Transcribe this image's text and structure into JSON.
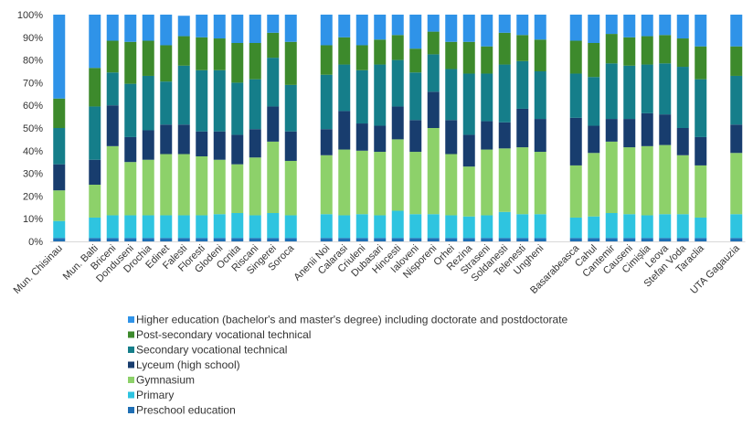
{
  "chart_data": {
    "type": "bar",
    "stacked": true,
    "title": "",
    "xlabel": "",
    "ylabel": "",
    "ylim": [
      0,
      100
    ],
    "y_ticks": [
      "0%",
      "10%",
      "20%",
      "30%",
      "40%",
      "50%",
      "60%",
      "70%",
      "80%",
      "90%",
      "100%"
    ],
    "grid": false,
    "legend_position": "bottom-left",
    "categories": [
      "Mun. Chisinau",
      "",
      "Mun. Balti",
      "Briceni",
      "Donduseni",
      "Drochia",
      "Edinet",
      "Falesti",
      "Floresti",
      "Glodeni",
      "Ocnita",
      "Riscani",
      "Singerei",
      "Soroca",
      "",
      "Anenii Noi",
      "Calarasi",
      "Criuleni",
      "Dubasari",
      "Hincesti",
      "Ialoveni",
      "Nisporeni",
      "Orhei",
      "Rezina",
      "Straseni",
      "Soldanesti",
      "Telenesti",
      "Ungheni",
      "",
      "Basarabeasca",
      "Cahul",
      "Cantemir",
      "Causeni",
      "Cimișlia",
      "Leova",
      "Stefan Voda",
      "Taraclia",
      "",
      "UTA Gagauzia"
    ],
    "series": [
      {
        "name": "Preschool education",
        "color": "#1f6fb5",
        "values": [
          1.5,
          null,
          1.5,
          1.5,
          1.5,
          1.5,
          1.5,
          1.5,
          1.5,
          1.5,
          1.5,
          1.5,
          1.5,
          1.5,
          null,
          1.5,
          1.5,
          1.5,
          1.5,
          1.5,
          1.5,
          1.5,
          1.5,
          1.5,
          1.5,
          1.5,
          1.5,
          1.5,
          null,
          1.5,
          1.5,
          1.5,
          1.5,
          1.5,
          1.5,
          1.5,
          1.5,
          null,
          1.5
        ]
      },
      {
        "name": "Primary",
        "color": "#2ec4e0",
        "values": [
          7.5,
          null,
          9,
          10,
          10,
          10,
          10,
          10,
          10,
          10.5,
          11,
          10,
          11,
          10,
          null,
          10.5,
          10,
          10.5,
          10,
          12,
          10.5,
          10.5,
          10,
          9.5,
          10,
          11.5,
          10.5,
          10.5,
          null,
          9,
          9.5,
          11,
          10.5,
          10,
          10.5,
          10.5,
          9,
          null,
          10.5
        ]
      },
      {
        "name": "Gymnasium",
        "color": "#8dd16a",
        "values": [
          13.5,
          null,
          14.5,
          30.5,
          23.5,
          24.5,
          27,
          27,
          26,
          24,
          21.5,
          25.5,
          31.5,
          24,
          null,
          26,
          29,
          28,
          28,
          31.5,
          27.5,
          38,
          27,
          22,
          29,
          28,
          29.5,
          27.5,
          null,
          23,
          28,
          31.5,
          29.5,
          30.5,
          30.5,
          26,
          23,
          null,
          27
        ]
      },
      {
        "name": "Lyceum (high school)",
        "color": "#183d6e",
        "values": [
          11.5,
          null,
          11,
          18,
          11,
          13,
          13,
          13,
          11,
          12.5,
          13,
          12.5,
          15.5,
          13,
          null,
          11.5,
          17,
          12,
          11.5,
          14.5,
          14,
          16,
          15,
          14,
          12.5,
          11.5,
          17,
          14.5,
          null,
          21,
          12,
          10,
          12.5,
          14.5,
          13.5,
          12,
          12.5,
          null,
          12.5
        ]
      },
      {
        "name": "Secondary vocational technical",
        "color": "#157e8a",
        "values": [
          16,
          null,
          23.5,
          14.5,
          23.5,
          24,
          19,
          26,
          27,
          27,
          23,
          22,
          21.5,
          20.5,
          null,
          24,
          20.5,
          23.5,
          27,
          20.5,
          21,
          16.5,
          22.5,
          27,
          21,
          25.5,
          21,
          21,
          null,
          19.5,
          21.5,
          24.5,
          23.5,
          21.5,
          22.5,
          27,
          25.5,
          null,
          21.5
        ]
      },
      {
        "name": "Post-secondary vocational technical",
        "color": "#3d8a2c",
        "values": [
          13,
          null,
          17,
          14,
          18.5,
          15.5,
          16,
          13,
          14.5,
          14,
          17.5,
          16,
          11,
          19,
          null,
          13,
          12,
          11,
          11,
          11,
          10.5,
          10,
          12,
          14,
          12,
          14,
          11.5,
          14,
          null,
          14.5,
          15,
          13,
          12.5,
          12.5,
          12.5,
          12.5,
          14.5,
          null,
          13
        ]
      },
      {
        "name": "Higher education (bachelor's and master's degree) including doctorate and postdoctorate",
        "color": "#2f93e8",
        "values": [
          37,
          null,
          23.5,
          11.5,
          12,
          11.5,
          13.5,
          9,
          10,
          10.5,
          12.5,
          12.5,
          8,
          12,
          null,
          13.5,
          10,
          13.5,
          11,
          9,
          15,
          7.5,
          12,
          12,
          14,
          8,
          9,
          11,
          null,
          11.5,
          12.5,
          8.5,
          10,
          9.5,
          9,
          10.5,
          14,
          null,
          14
        ]
      }
    ]
  }
}
